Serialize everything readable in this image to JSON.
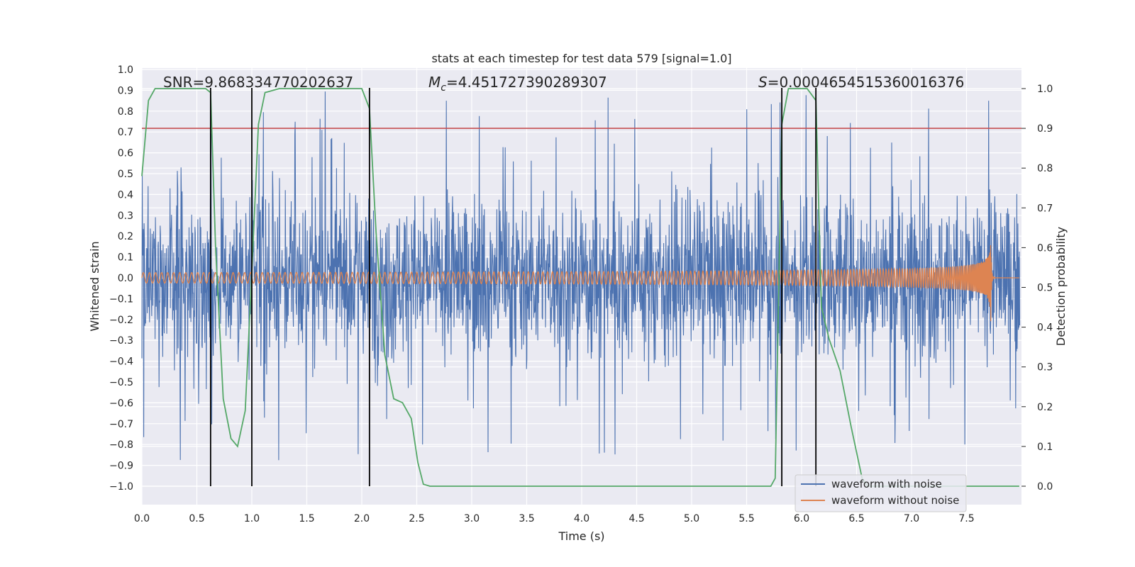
{
  "chart_data": {
    "type": "line",
    "title": "stats at each timestep for test data 579 [signal=1.0]",
    "xlabel": "Time (s)",
    "ylabel": "Whitened strain",
    "y2label": "Detection probability",
    "xlim": [
      0.0,
      8.0
    ],
    "ylim": [
      -1.0,
      1.0
    ],
    "y2lim": [
      0.0,
      1.0
    ],
    "xticks": [
      "0.0",
      "0.5",
      "1.0",
      "1.5",
      "2.0",
      "2.5",
      "3.0",
      "3.5",
      "4.0",
      "4.5",
      "5.0",
      "5.5",
      "6.0",
      "6.5",
      "7.0",
      "7.5"
    ],
    "yticks": [
      "1.0",
      "0.9",
      "0.8",
      "0.7",
      "0.6",
      "0.5",
      "0.4",
      "0.3",
      "0.2",
      "0.1",
      "0.0",
      "−0.1",
      "−0.2",
      "−0.3",
      "−0.4",
      "−0.5",
      "−0.6",
      "−0.7",
      "−0.8",
      "−0.9",
      "−1.0"
    ],
    "y2ticks": [
      "1.0",
      "0.9",
      "0.8",
      "0.7",
      "0.6",
      "0.5",
      "0.4",
      "0.3",
      "0.2",
      "0.1",
      "0.0"
    ],
    "annotations": {
      "snr": "SNR=9.868334770202637",
      "mc_symbol": "M",
      "mc_sub": "c",
      "mc_value": "=4.451727390289307",
      "s_symbol": "S",
      "s_value": "=0.0004654515360016376"
    },
    "legend": {
      "placement": "lower-right",
      "entries": [
        {
          "label": "waveform with noise",
          "color": "#4c72b0"
        },
        {
          "label": "waveform without noise",
          "color": "#dd8452"
        }
      ]
    },
    "threshold": {
      "axis": "y2",
      "value": 0.9,
      "color": "#c44e52"
    },
    "vlines_x": [
      0.625,
      1.0,
      2.07,
      5.82,
      6.13
    ],
    "series": [
      {
        "name": "waveform with noise",
        "color": "#4c72b0",
        "noise_envelope": {
          "typical": 0.55,
          "peak_max": 0.93,
          "peak_min": -1.0
        }
      },
      {
        "name": "waveform without noise",
        "color": "#dd8452",
        "chirp": {
          "start_amplitude": 0.025,
          "peak_time": 7.72,
          "peak_amplitude": 0.24,
          "start_cycles_per_s": 18,
          "end_cycles_per_s": 260
        }
      },
      {
        "name": "detection probability",
        "axis": "y2",
        "color": "#55a868",
        "points": [
          [
            0.0,
            0.78
          ],
          [
            0.06,
            0.97
          ],
          [
            0.12,
            1.0
          ],
          [
            0.25,
            1.0
          ],
          [
            0.58,
            1.0
          ],
          [
            0.625,
            0.99
          ],
          [
            0.67,
            0.6
          ],
          [
            0.74,
            0.22
          ],
          [
            0.81,
            0.12
          ],
          [
            0.87,
            0.1
          ],
          [
            0.94,
            0.19
          ],
          [
            1.0,
            0.54
          ],
          [
            1.06,
            0.91
          ],
          [
            1.12,
            0.99
          ],
          [
            1.25,
            1.0
          ],
          [
            1.9,
            1.0
          ],
          [
            2.0,
            1.0
          ],
          [
            2.07,
            0.95
          ],
          [
            2.13,
            0.64
          ],
          [
            2.21,
            0.33
          ],
          [
            2.29,
            0.22
          ],
          [
            2.37,
            0.21
          ],
          [
            2.45,
            0.17
          ],
          [
            2.51,
            0.06
          ],
          [
            2.56,
            0.005
          ],
          [
            2.62,
            0.0
          ],
          [
            5.72,
            0.0
          ],
          [
            5.76,
            0.02
          ],
          [
            5.82,
            0.91
          ],
          [
            5.88,
            1.0
          ],
          [
            6.05,
            1.0
          ],
          [
            6.13,
            0.97
          ],
          [
            6.18,
            0.45
          ],
          [
            6.25,
            0.37
          ],
          [
            6.35,
            0.29
          ],
          [
            6.45,
            0.15
          ],
          [
            6.55,
            0.02
          ],
          [
            6.6,
            0.0
          ],
          [
            7.98,
            0.0
          ]
        ]
      }
    ]
  }
}
